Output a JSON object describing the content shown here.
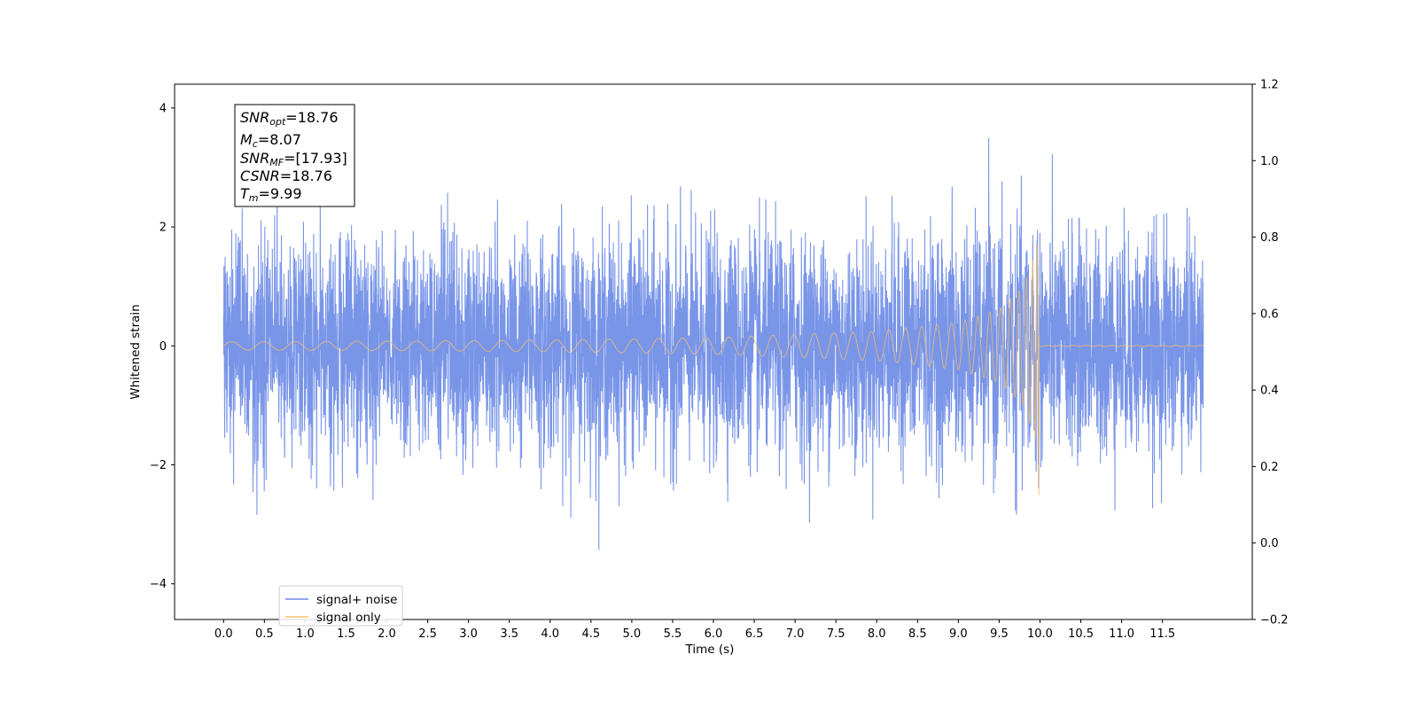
{
  "chart_data": {
    "type": "line",
    "xlabel": "Time (s)",
    "ylabel": "Whitened strain",
    "xlim": [
      -0.6,
      12.6
    ],
    "ylim": [
      -4.6,
      4.4
    ],
    "ylim_right": [
      -0.2,
      1.2
    ],
    "x_ticks": [
      "0.0",
      "0.5",
      "1.0",
      "1.5",
      "2.0",
      "2.5",
      "3.0",
      "3.5",
      "4.0",
      "4.5",
      "5.0",
      "5.5",
      "6.0",
      "6.5",
      "7.0",
      "7.5",
      "8.0",
      "8.5",
      "9.0",
      "9.5",
      "10.0",
      "10.5",
      "11.0",
      "11.5"
    ],
    "x_tick_values": [
      0.0,
      0.5,
      1.0,
      1.5,
      2.0,
      2.5,
      3.0,
      3.5,
      4.0,
      4.5,
      5.0,
      5.5,
      6.0,
      6.5,
      7.0,
      7.5,
      8.0,
      8.5,
      9.0,
      9.5,
      10.0,
      10.5,
      11.0,
      11.5
    ],
    "y_ticks": [
      "4",
      "2",
      "0",
      "−2",
      "−4"
    ],
    "y_tick_values": [
      4,
      2,
      0,
      -2,
      -4
    ],
    "y_ticks_right": [
      "1.2",
      "1.0",
      "0.8",
      "0.6",
      "0.4",
      "0.2",
      "0.0",
      "−0.2"
    ],
    "y_tick_values_right": [
      1.2,
      1.0,
      0.8,
      0.6,
      0.4,
      0.2,
      0.0,
      -0.2
    ],
    "grid": false,
    "legend_position": "lower-left",
    "series": [
      {
        "name": "signal+ noise",
        "color": "#6a89e6",
        "t_start": 0.0,
        "t_end": 12.0,
        "noise_envelope": {
          "typical_max": 2.0,
          "peak_max": 3.92,
          "peak_min": -4.2
        }
      },
      {
        "name": "signal only",
        "color": "#f5c06a",
        "t_start": 0.0,
        "t_merger": 9.99,
        "t_end": 12.0,
        "envelope_points": [
          [
            0.0,
            0.07
          ],
          [
            2.0,
            0.08
          ],
          [
            4.0,
            0.1
          ],
          [
            6.0,
            0.14
          ],
          [
            8.0,
            0.25
          ],
          [
            9.0,
            0.4
          ],
          [
            9.5,
            0.62
          ],
          [
            9.8,
            1.0
          ],
          [
            9.95,
            1.6
          ],
          [
            9.99,
            1.9
          ]
        ],
        "merger_min": -2.85
      }
    ],
    "annotation": {
      "lines": [
        {
          "name": "SNR",
          "sub": "opt",
          "value": "=18.76"
        },
        {
          "name": "M",
          "sub": "c",
          "value": "=8.07"
        },
        {
          "name": "SNR",
          "sub": "MF",
          "value": "=[17.93]"
        },
        {
          "name": "CSNR",
          "sub": "",
          "value": "=18.76"
        },
        {
          "name": "T",
          "sub": "m",
          "value": "=9.99"
        }
      ]
    }
  }
}
